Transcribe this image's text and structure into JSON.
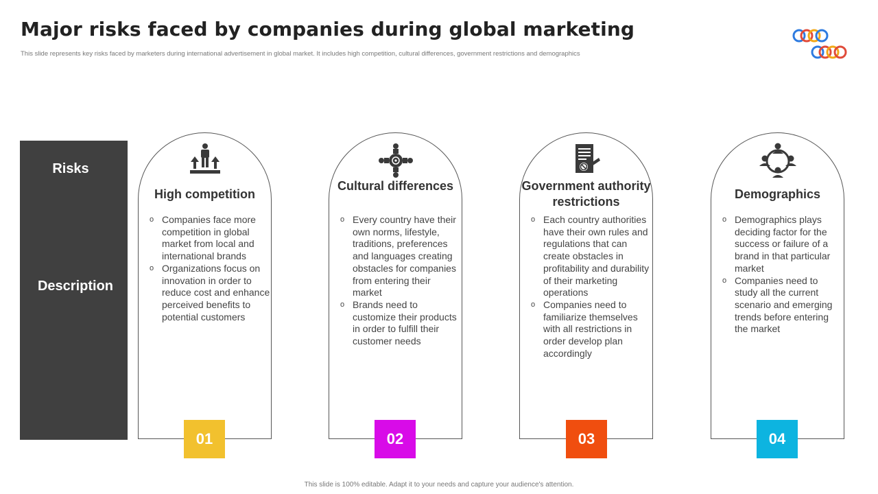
{
  "header": {
    "title": "Major risks faced by companies during global marketing",
    "subtitle": "This slide represents key risks faced by marketers during international advertisement in global market. It includes high competition,  cultural differences, government restrictions and demographics"
  },
  "side": {
    "risks_label": "Risks",
    "description_label": "Description"
  },
  "cards": [
    {
      "heading": "High competition",
      "icon": "competition-icon",
      "number": "01",
      "color": "#F2C12E",
      "bullets": [
        "Companies face more competition in global market from local and international brands",
        "Organizations focus on innovation in order to reduce cost and enhance perceived benefits to potential customers"
      ]
    },
    {
      "heading": "Cultural differences",
      "icon": "cultural-network-icon",
      "number": "02",
      "color": "#D80BE8",
      "bullets": [
        "Every country have their own norms, lifestyle, traditions, preferences and languages creating obstacles for companies from entering their market",
        "Brands need to customize their products in order to fulfill their customer needs"
      ]
    },
    {
      "heading": "Government authority restrictions",
      "icon": "regulation-document-icon",
      "number": "03",
      "color": "#F04E0F",
      "bullets": [
        "Each country authorities have their own rules and regulations that can create obstacles in profitability and durability of their marketing operations",
        "Companies need to familiarize themselves with all restrictions in order develop plan accordingly"
      ]
    },
    {
      "heading": "Demographics",
      "icon": "demographics-people-icon",
      "number": "04",
      "color": "#0DB4E0",
      "bullets": [
        "Demographics plays deciding factor for the success or failure of a brand in that particular market",
        "Companies need to study all the current scenario and emerging trends before entering the market"
      ]
    }
  ],
  "footer": {
    "note": "This slide is 100% editable.  Adapt it to your needs and capture your audience's attention."
  }
}
